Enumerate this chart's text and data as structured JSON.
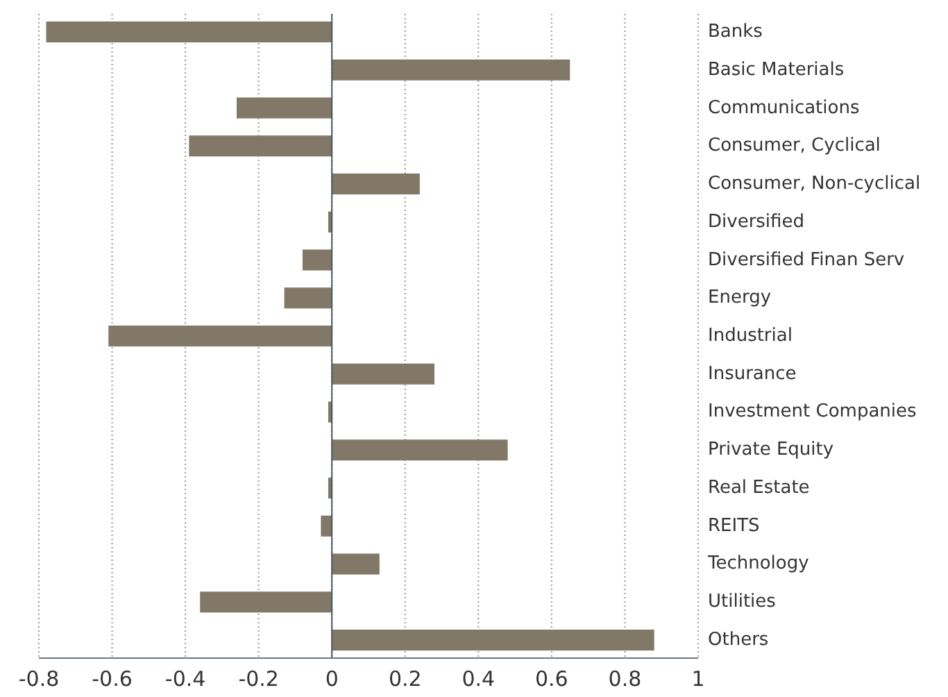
{
  "chart_data": {
    "type": "bar",
    "orientation": "horizontal",
    "categories": [
      "Banks",
      "Basic Materials",
      "Communications",
      "Consumer, Cyclical",
      "Consumer, Non-cyclical",
      "Diversified",
      "Diversified Finan Serv",
      "Energy",
      "Industrial",
      "Insurance",
      "Investment Companies",
      "Private Equity",
      "Real Estate",
      "REITS",
      "Technology",
      "Utilities",
      "Others"
    ],
    "values": [
      -0.78,
      0.65,
      -0.26,
      -0.39,
      0.24,
      -0.01,
      -0.08,
      -0.13,
      -0.61,
      0.28,
      -0.01,
      0.48,
      -0.01,
      -0.03,
      0.13,
      -0.36,
      0.88
    ],
    "color": "#817868",
    "xlim": [
      -0.8,
      1
    ],
    "xticks": [
      -0.8,
      -0.6,
      -0.4,
      -0.2,
      0,
      0.2,
      0.4,
      0.6,
      0.8,
      1
    ],
    "grid": "x"
  }
}
